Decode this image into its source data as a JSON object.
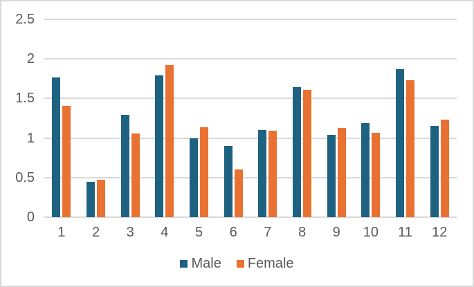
{
  "chart_data": {
    "type": "bar",
    "title": "",
    "xlabel": "",
    "ylabel": "",
    "categories": [
      "1",
      "2",
      "3",
      "4",
      "5",
      "6",
      "7",
      "8",
      "9",
      "10",
      "11",
      "12"
    ],
    "series": [
      {
        "name": "Male",
        "color": "#1E6281",
        "values": [
          1.77,
          0.45,
          1.29,
          1.79,
          1.0,
          0.9,
          1.1,
          1.64,
          1.04,
          1.19,
          1.87,
          1.15
        ]
      },
      {
        "name": "Female",
        "color": "#E97132",
        "values": [
          1.41,
          0.47,
          1.06,
          1.92,
          1.14,
          0.6,
          1.09,
          1.61,
          1.13,
          1.07,
          1.73,
          1.23
        ]
      }
    ],
    "ylim": [
      0,
      2.5
    ],
    "ytick_interval": 0.5,
    "yticks": [
      "0",
      "0.5",
      "1",
      "1.5",
      "2",
      "2.5"
    ],
    "grid": true,
    "legend_position": "bottom-center"
  },
  "colors": {
    "gridline": "#D9D9D9",
    "axis_text": "#595959",
    "figure_border": "#D9D9D9",
    "background": "#FFFFFF"
  }
}
